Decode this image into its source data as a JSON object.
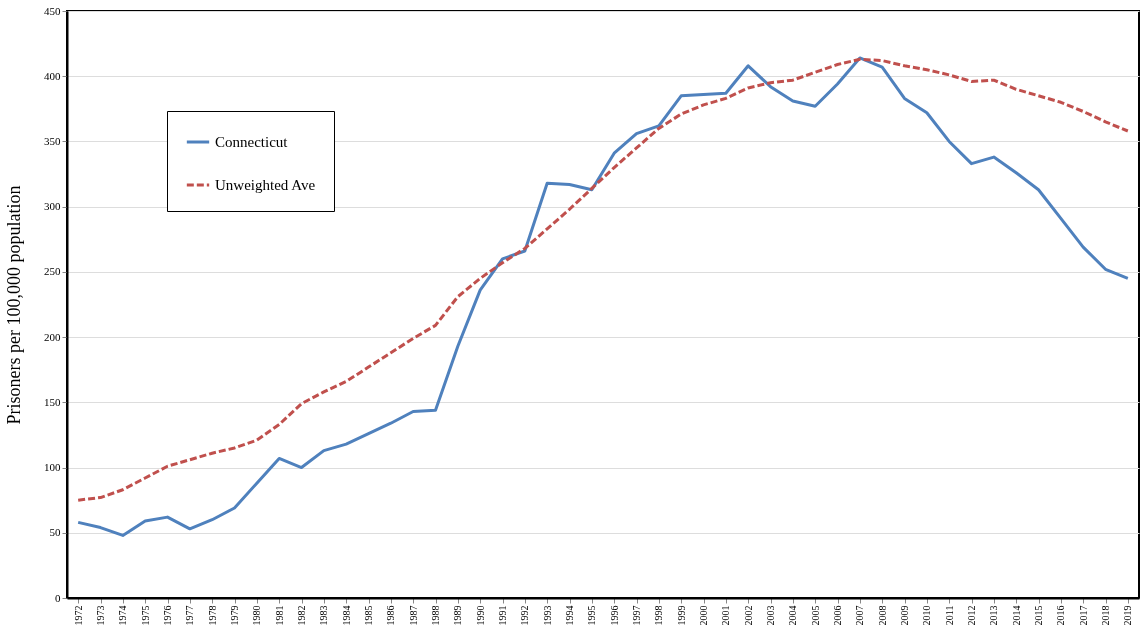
{
  "chart_data": {
    "type": "line",
    "ylabel": "Prisoners per 100,000 population",
    "categories": [
      "1972",
      "1973",
      "1974",
      "1975",
      "1976",
      "1977",
      "1978",
      "1979",
      "1980",
      "1981",
      "1982",
      "1983",
      "1984",
      "1985",
      "1986",
      "1987",
      "1988",
      "1989",
      "1990",
      "1991",
      "1992",
      "1993",
      "1994",
      "1995",
      "1996",
      "1997",
      "1998",
      "1999",
      "2000",
      "2001",
      "2002",
      "2003",
      "2004",
      "2005",
      "2006",
      "2007",
      "2008",
      "2009",
      "2010",
      "2011",
      "2012",
      "2013",
      "2014",
      "2015",
      "2016",
      "2017",
      "2018",
      "2019"
    ],
    "series": [
      {
        "name": "Connecticut",
        "color": "#4f81bd",
        "line_style": "solid",
        "values": [
          58,
          54,
          48,
          59,
          62,
          53,
          60,
          69,
          88,
          107,
          100,
          113,
          118,
          126,
          134,
          143,
          144,
          193,
          236,
          260,
          266,
          318,
          317,
          313,
          341,
          356,
          362,
          385,
          386,
          387,
          408,
          392,
          381,
          377,
          394,
          414,
          407,
          383,
          372,
          350,
          333,
          338,
          326,
          313,
          291,
          269,
          252,
          245
        ]
      },
      {
        "name": "Unweighted Ave",
        "color": "#c0504d",
        "line_style": "dashed",
        "values": [
          75,
          77,
          83,
          92,
          101,
          106,
          111,
          115,
          121,
          133,
          149,
          158,
          166,
          177,
          188,
          199,
          209,
          231,
          245,
          257,
          268,
          283,
          298,
          314,
          330,
          345,
          360,
          371,
          378,
          383,
          391,
          395,
          397,
          403,
          409,
          413,
          412,
          408,
          405,
          401,
          396,
          397,
          390,
          385,
          380,
          373,
          365,
          358
        ]
      }
    ],
    "ylim": [
      0,
      450
    ],
    "yticks": [
      0,
      50,
      100,
      150,
      200,
      250,
      300,
      350,
      400,
      450
    ],
    "grid": "y",
    "legend": "top left"
  }
}
